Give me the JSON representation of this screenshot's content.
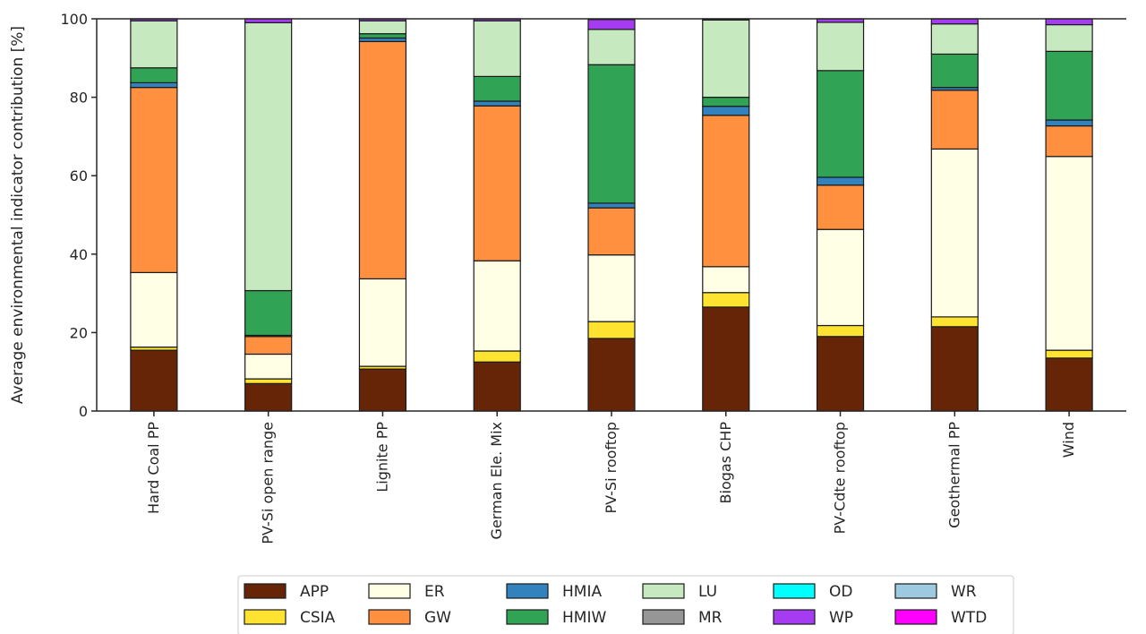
{
  "chart_data": {
    "type": "bar",
    "stacked": true,
    "ylabel": "Average environmental indicator contribution [%]",
    "xlabel": "",
    "title": "",
    "ylim": [
      0,
      100
    ],
    "yticks": [
      0,
      20,
      40,
      60,
      80,
      100
    ],
    "grid": false,
    "legend_placement": "bottom-center",
    "categories": [
      "Hard Coal PP",
      "PV-Si open range",
      "Lignite PP",
      "German Ele. Mix",
      "PV-Si rooftop",
      "Biogas CHP",
      "PV-Cdte rooftop",
      "Geothermal PP",
      "Wind"
    ],
    "series": [
      {
        "name": "APP",
        "color": "#662506",
        "values": [
          15.5,
          7.0,
          10.7,
          12.5,
          18.5,
          26.5,
          19.0,
          21.5,
          13.5
        ]
      },
      {
        "name": "CSIA",
        "color": "#fee330",
        "values": [
          0.8,
          1.2,
          0.7,
          2.8,
          4.3,
          3.7,
          2.8,
          2.5,
          2.0
        ]
      },
      {
        "name": "ER",
        "color": "#ffffe5",
        "values": [
          19.0,
          6.3,
          22.3,
          23.0,
          17.0,
          6.6,
          24.5,
          42.8,
          49.4
        ]
      },
      {
        "name": "GW",
        "color": "#fe9040",
        "values": [
          47.2,
          4.5,
          60.5,
          39.5,
          12.0,
          38.6,
          11.3,
          15.0,
          7.8
        ]
      },
      {
        "name": "HMIA",
        "color": "#3182bd",
        "values": [
          1.2,
          0.3,
          0.9,
          1.2,
          1.2,
          2.3,
          2.0,
          0.7,
          1.5
        ]
      },
      {
        "name": "HMIW",
        "color": "#31a354",
        "values": [
          3.8,
          11.4,
          1.1,
          6.3,
          35.3,
          2.3,
          27.2,
          8.5,
          17.5
        ]
      },
      {
        "name": "LU",
        "color": "#c7e9c0",
        "values": [
          12.0,
          68.3,
          3.3,
          14.2,
          9.0,
          19.7,
          12.3,
          7.7,
          6.8
        ]
      },
      {
        "name": "MR",
        "color": "#969696",
        "values": [
          0.0,
          0.0,
          0.0,
          0.0,
          0.0,
          0.0,
          0.0,
          0.0,
          0.0
        ]
      },
      {
        "name": "OD",
        "color": "#00ffff",
        "values": [
          0.0,
          0.0,
          0.0,
          0.0,
          0.0,
          0.0,
          0.0,
          0.0,
          0.0
        ]
      },
      {
        "name": "WP",
        "color": "#a63cf2",
        "values": [
          0.5,
          1.0,
          0.5,
          0.5,
          2.5,
          0.3,
          0.9,
          1.3,
          1.5
        ]
      },
      {
        "name": "WR",
        "color": "#9ecae1",
        "values": [
          0.0,
          0.0,
          0.0,
          0.0,
          0.0,
          0.0,
          0.0,
          0.0,
          0.0
        ]
      },
      {
        "name": "WTD",
        "color": "#ff00ff",
        "values": [
          0.0,
          0.0,
          0.0,
          0.0,
          0.0,
          0.0,
          0.0,
          0.0,
          0.0
        ]
      }
    ],
    "legend_order": [
      "APP",
      "CSIA",
      "ER",
      "GW",
      "HMIA",
      "HMIW",
      "LU",
      "MR",
      "OD",
      "WP",
      "WR",
      "WTD"
    ]
  }
}
